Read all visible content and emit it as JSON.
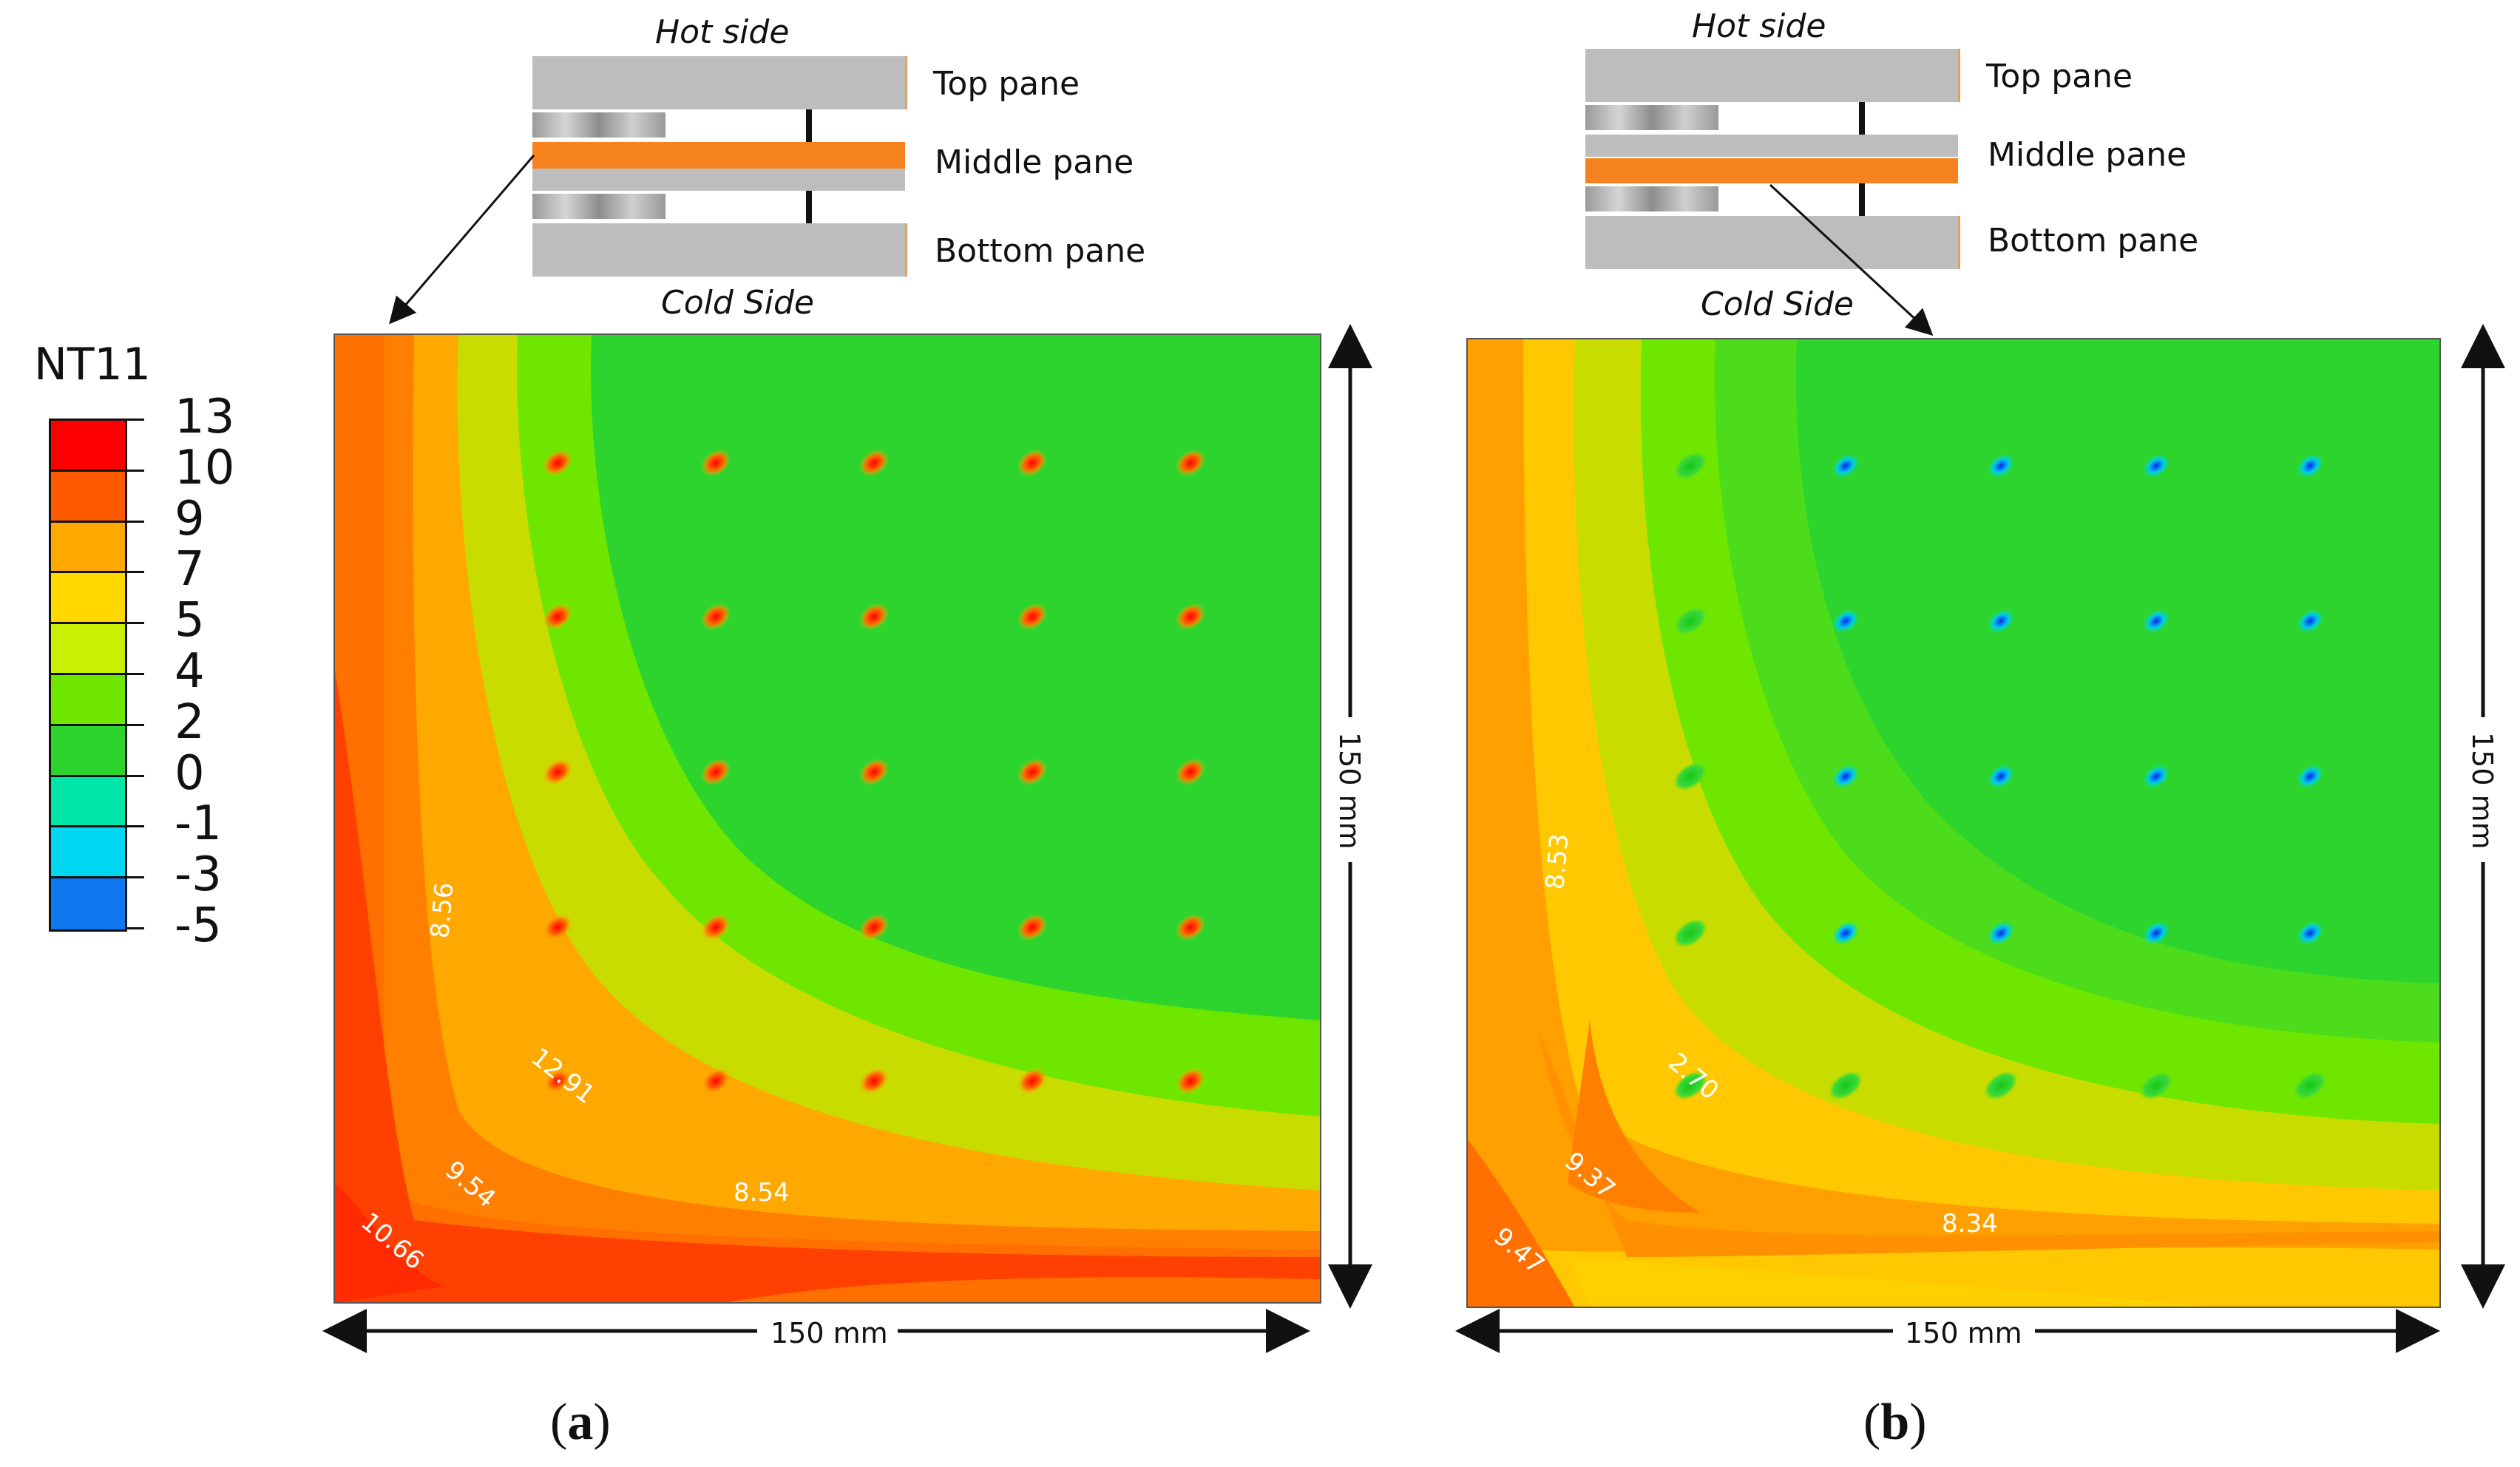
{
  "legend": {
    "title": "NT11",
    "values": [
      "13",
      "10",
      "9",
      "7",
      "5",
      "4",
      "2",
      "0",
      "-1",
      "-3",
      "-5"
    ],
    "colors": [
      "#ff0000",
      "#ff5a00",
      "#ffa800",
      "#ffd800",
      "#c8f000",
      "#6ee600",
      "#2dd42d",
      "#00e6a8",
      "#00d7f0",
      "#0f78f0",
      "#0a1ee6"
    ]
  },
  "diagram_labels": {
    "hot": "Hot side",
    "top": "Top pane",
    "middle": "Middle pane",
    "bottom": "Bottom pane",
    "cold": "Cold Side"
  },
  "dimension": "150 mm",
  "panel_a": {
    "letter": "a",
    "contour_labels": [
      "8.56",
      "12.91",
      "9.54",
      "8.54",
      "10.66"
    ]
  },
  "panel_b": {
    "letter": "b",
    "contour_labels": [
      "8.53",
      "2.70",
      "9.37",
      "8.34",
      "9.47"
    ]
  }
}
